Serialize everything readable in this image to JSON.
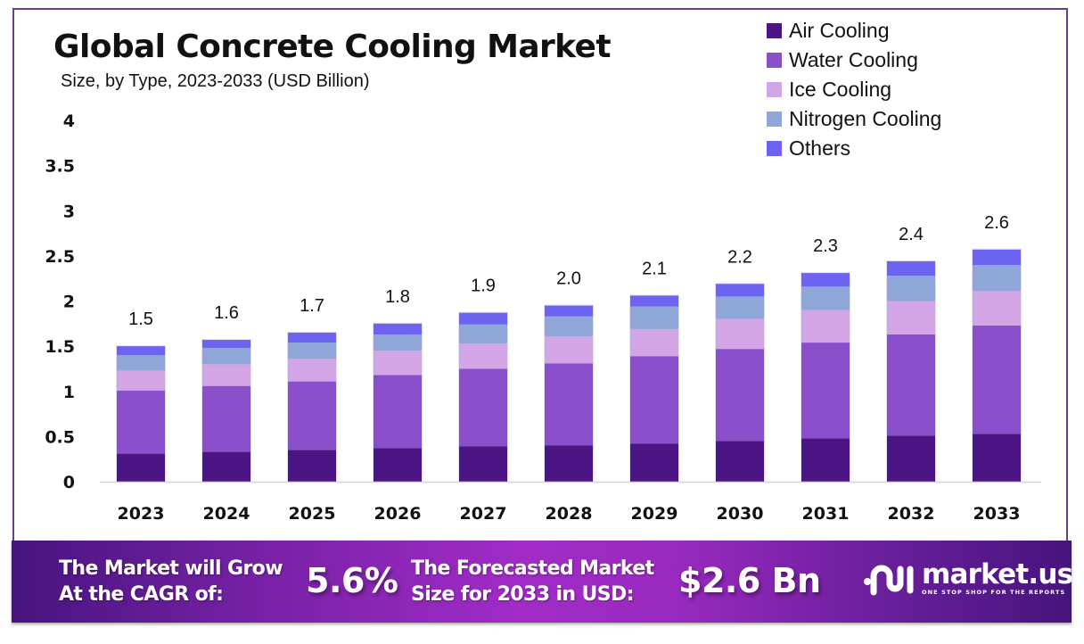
{
  "header": {
    "title": "Global Concrete Cooling Market",
    "subtitle": "Size, by Type, 2023-2033 (USD Billion)"
  },
  "legend": [
    {
      "label": "Air Cooling",
      "color": "#4b1683"
    },
    {
      "label": "Water Cooling",
      "color": "#8a4fcb"
    },
    {
      "label": "Ice Cooling",
      "color": "#d2a5e6"
    },
    {
      "label": "Nitrogen Cooling",
      "color": "#8fa6d8"
    },
    {
      "label": "Others",
      "color": "#6c63f0"
    }
  ],
  "chart_data": {
    "type": "bar",
    "stacked": true,
    "title": "Global Concrete Cooling Market",
    "subtitle": "Size, by Type, 2023-2033 (USD Billion)",
    "xlabel": "",
    "ylabel": "",
    "ylim": [
      0,
      4
    ],
    "yticks": [
      "0",
      "0.5",
      "1",
      "1.5",
      "2",
      "2.5",
      "3",
      "3.5",
      "4"
    ],
    "grid": false,
    "legend_position": "top-right",
    "categories": [
      "2023",
      "2024",
      "2025",
      "2026",
      "2027",
      "2028",
      "2029",
      "2030",
      "2031",
      "2032",
      "2033"
    ],
    "series": [
      {
        "name": "Air Cooling",
        "color": "#4b1683",
        "values": [
          0.31,
          0.33,
          0.35,
          0.37,
          0.39,
          0.4,
          0.42,
          0.45,
          0.48,
          0.51,
          0.53
        ]
      },
      {
        "name": "Water Cooling",
        "color": "#8a4fcb",
        "values": [
          0.7,
          0.73,
          0.76,
          0.81,
          0.86,
          0.91,
          0.97,
          1.02,
          1.06,
          1.12,
          1.2
        ]
      },
      {
        "name": "Ice Cooling",
        "color": "#d2a5e6",
        "values": [
          0.22,
          0.24,
          0.25,
          0.27,
          0.28,
          0.3,
          0.3,
          0.33,
          0.36,
          0.37,
          0.38
        ]
      },
      {
        "name": "Nitrogen Cooling",
        "color": "#8fa6d8",
        "values": [
          0.17,
          0.18,
          0.18,
          0.18,
          0.21,
          0.22,
          0.25,
          0.25,
          0.26,
          0.28,
          0.29
        ]
      },
      {
        "name": "Others",
        "color": "#6c63f0",
        "values": [
          0.1,
          0.09,
          0.11,
          0.12,
          0.13,
          0.12,
          0.12,
          0.14,
          0.15,
          0.16,
          0.17
        ]
      }
    ],
    "totals": [
      1.5,
      1.6,
      1.7,
      1.8,
      1.9,
      2.0,
      2.1,
      2.2,
      2.3,
      2.4,
      2.6
    ],
    "total_labels": [
      "1.5",
      "1.6",
      "1.7",
      "1.8",
      "1.9",
      "2.0",
      "2.1",
      "2.2",
      "2.3",
      "2.4",
      "2.6"
    ]
  },
  "banner": {
    "cagr_text_line1": "The Market will Grow",
    "cagr_text_line2": "At the CAGR of:",
    "cagr_value": "5.6%",
    "forecast_text_line1": "The Forecasted Market",
    "forecast_text_line2": "Size for 2033 in USD:",
    "forecast_value": "$2.6 Bn",
    "logo_name": "market.us",
    "logo_tagline": "ONE STOP SHOP FOR THE REPORTS"
  }
}
